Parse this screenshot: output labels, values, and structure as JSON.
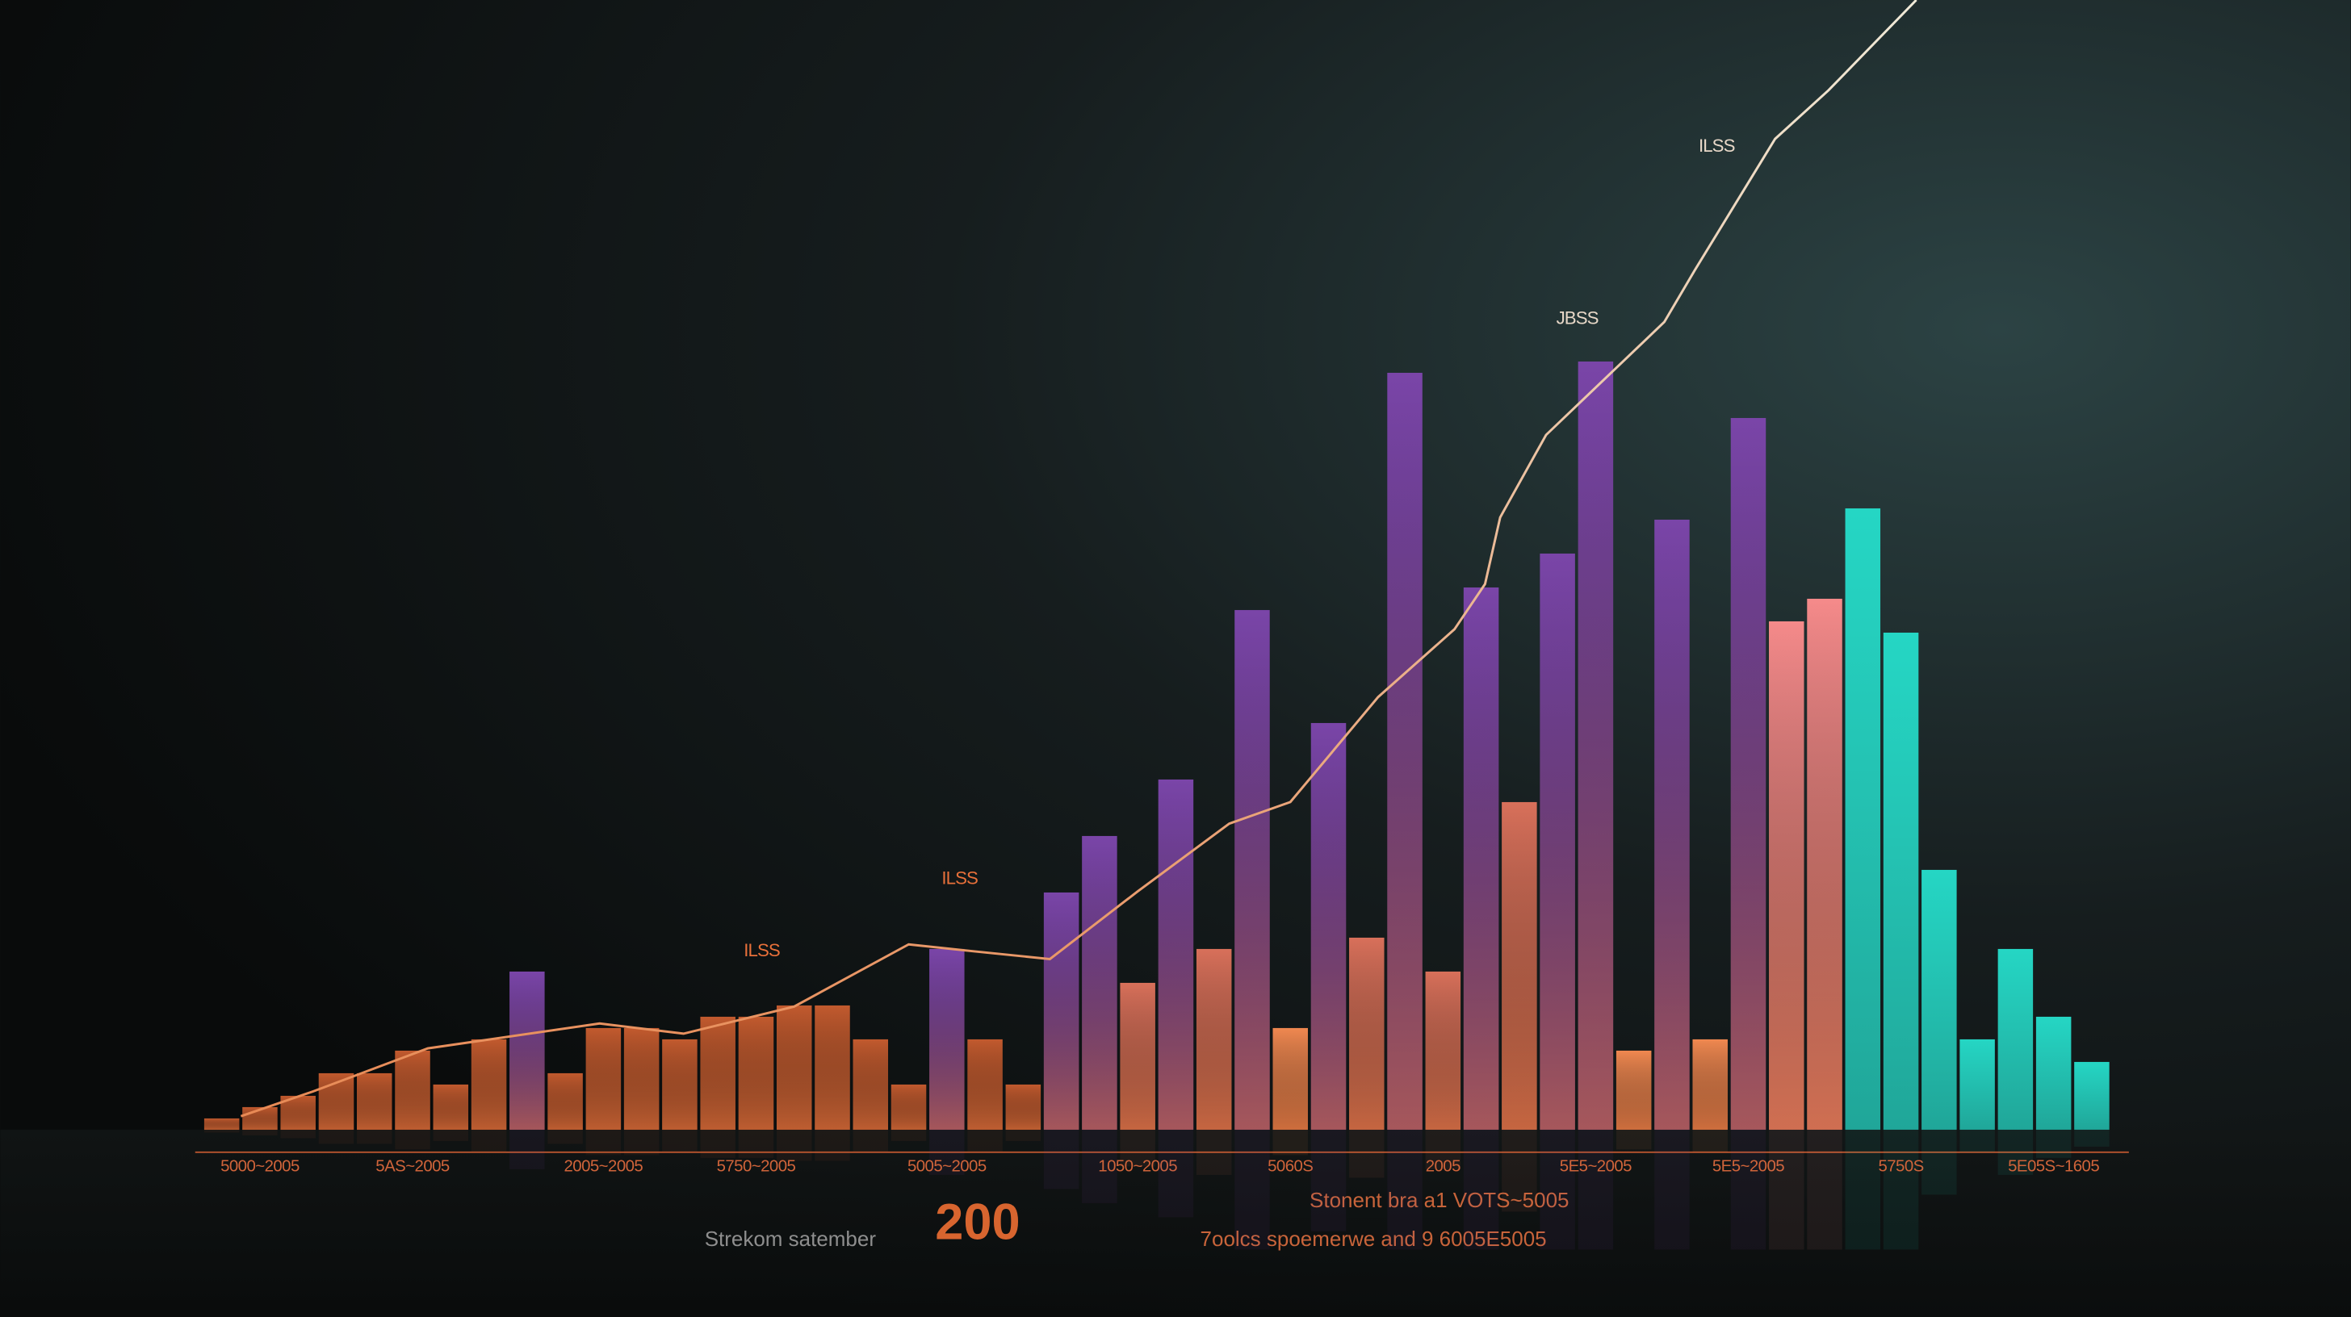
{
  "chart_data": {
    "type": "bar",
    "categories": [
      null,
      "5000~2005",
      null,
      null,
      null,
      "5AS~2005",
      null,
      null,
      null,
      null,
      "2005~2005",
      null,
      null,
      null,
      "5750~2005",
      null,
      null,
      null,
      null,
      "5005~2005",
      null,
      null,
      null,
      null,
      "1050~2005",
      null,
      null,
      null,
      "5060S",
      null,
      null,
      null,
      "2005",
      null,
      null,
      null,
      "5E5~2005",
      null,
      null,
      null,
      "5E5~2005",
      null,
      null,
      null,
      "5750S",
      null,
      null,
      null,
      "5E05S~1605",
      null
    ],
    "values": [
      1,
      2,
      3,
      5,
      5,
      7,
      4,
      8,
      14,
      5,
      9,
      9,
      8,
      10,
      10,
      11,
      11,
      8,
      4,
      16,
      8,
      4,
      21,
      26,
      13,
      31,
      16,
      46,
      9,
      36,
      17,
      67,
      14,
      48,
      29,
      51,
      68,
      7,
      54,
      8,
      63,
      45,
      47,
      55,
      44,
      23,
      8,
      16,
      10,
      6
    ],
    "colors": [
      "#c25a2e",
      "#c25a2e",
      "#c25a2e",
      "#c25a2e",
      "#c25a2e",
      "#c25a2e",
      "#c25a2e",
      "#c25a2e",
      "#7a45a8",
      "#c25a2e",
      "#c25a2e",
      "#c25a2e",
      "#c25a2e",
      "#c25a2e",
      "#c25a2e",
      "#c25a2e",
      "#c25a2e",
      "#c25a2e",
      "#c25a2e",
      "#7a45a8",
      "#c25a2e",
      "#c25a2e",
      "#7a45a8",
      "#7a45a8",
      "#d8705a",
      "#7a45a8",
      "#d8705a",
      "#7a45a8",
      "#f08850",
      "#7a45a8",
      "#d8705a",
      "#7a45a8",
      "#d8705a",
      "#7a45a8",
      "#d8705a",
      "#7a45a8",
      "#7a45a8",
      "#f08850",
      "#7a45a8",
      "#f08850",
      "#7a45a8",
      "#f58a8a",
      "#f58a8a",
      "#25d6c4",
      "#25d6c4",
      "#25d6c4",
      "#25d6c4",
      "#25d6c4",
      "#25d6c4",
      "#25d6c4"
    ],
    "xlim": [
      0,
      50
    ],
    "ylim": [
      0,
      100
    ],
    "line": {
      "color": "#e88a55",
      "x": [
        1.0,
        2.9,
        5.9,
        10.4,
        12.6,
        15.5,
        18.5,
        20.2,
        22.2,
        24.5,
        26.9,
        28.5,
        30.8,
        32.8,
        33.6,
        34.0,
        35.2,
        38.3,
        39.1,
        41.2,
        42.6,
        44.9
      ],
      "values": [
        1.2,
        3.4,
        7.2,
        9.4,
        8.5,
        10.9,
        16.4,
        15.8,
        15.1,
        21.1,
        27.1,
        29.0,
        38.3,
        44.3,
        48.3,
        54.2,
        61.5,
        71.5,
        76.1,
        87.7,
        92.0,
        100
      ]
    },
    "annotations": [
      "ILSS",
      "ILSS",
      "JBSS",
      "ILSS"
    ],
    "footer": {
      "caption": "Strekom satember",
      "headline": "200",
      "lines": [
        "Stonent bra a1 VOTS~5005",
        "7oolcs spoemerwe and 9 6005E5005"
      ]
    }
  }
}
